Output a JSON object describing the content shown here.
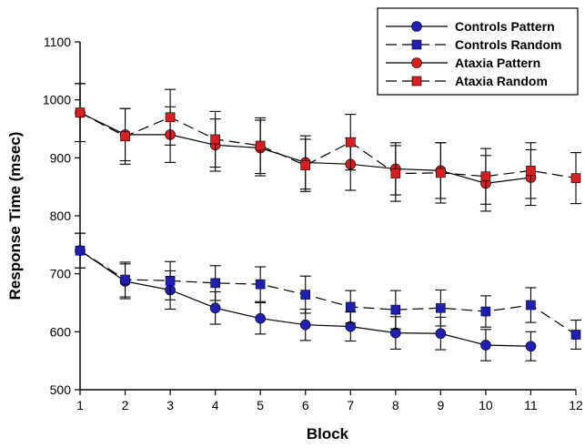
{
  "chart_data": {
    "type": "line",
    "xlabel": "Block",
    "ylabel": "Response Time (msec)",
    "xlim": [
      1,
      12
    ],
    "ylim": [
      500,
      1100
    ],
    "x_ticks": [
      "1",
      "2",
      "3",
      "4",
      "5",
      "6",
      "7",
      "8",
      "9",
      "10",
      "11",
      "12"
    ],
    "y_ticks": [
      "500",
      "600",
      "700",
      "800",
      "900",
      "1000",
      "1100"
    ],
    "grid": false,
    "legend_position": "top-right",
    "series": [
      {
        "name": "Controls Pattern",
        "marker": "circle",
        "line": "solid",
        "color": "#1f1fb4",
        "x": [
          1,
          2,
          3,
          4,
          5,
          6,
          7,
          8,
          9,
          10,
          11
        ],
        "values": [
          740,
          687,
          672,
          641,
          623,
          612,
          609,
          598,
          597,
          577,
          575
        ],
        "errors": [
          30,
          30,
          33,
          28,
          27,
          27,
          25,
          28,
          28,
          27,
          25
        ]
      },
      {
        "name": "Controls Random",
        "marker": "square",
        "line": "dashed",
        "color": "#1f1fb4",
        "x": [
          1,
          2,
          3,
          4,
          5,
          6,
          7,
          8,
          9,
          10,
          11,
          12
        ],
        "values": [
          740,
          690,
          688,
          684,
          682,
          664,
          643,
          638,
          641,
          635,
          646,
          595
        ],
        "errors": [
          30,
          30,
          33,
          30,
          30,
          32,
          28,
          33,
          31,
          27,
          30,
          25
        ]
      },
      {
        "name": "Ataxia Pattern",
        "marker": "circle",
        "line": "solid",
        "color": "#d81e1e",
        "x": [
          1,
          2,
          3,
          4,
          5,
          6,
          7,
          8,
          9,
          10,
          11
        ],
        "values": [
          978,
          940,
          940,
          922,
          917,
          892,
          889,
          881,
          878,
          856,
          866
        ],
        "errors": [
          50,
          45,
          48,
          45,
          48,
          46,
          45,
          45,
          48,
          48,
          48
        ]
      },
      {
        "name": "Ataxia Random",
        "marker": "square",
        "line": "dashed",
        "color": "#d81e1e",
        "x": [
          1,
          2,
          3,
          4,
          5,
          6,
          7,
          8,
          9,
          10,
          11,
          12
        ],
        "values": [
          978,
          937,
          970,
          932,
          921,
          887,
          927,
          873,
          874,
          868,
          878,
          865
        ],
        "errors": [
          50,
          48,
          48,
          48,
          48,
          45,
          48,
          48,
          52,
          48,
          48,
          44
        ]
      }
    ]
  }
}
